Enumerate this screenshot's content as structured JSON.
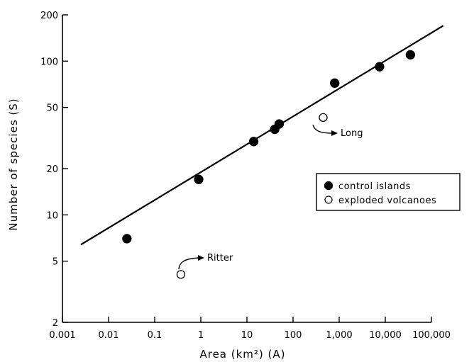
{
  "chart_data": {
    "type": "scatter",
    "x_scale": "log",
    "y_scale": "log",
    "xlim": [
      0.001,
      100000
    ],
    "ylim": [
      2,
      200
    ],
    "x_ticks": [
      {
        "value": 0.001,
        "label": "0.001"
      },
      {
        "value": 0.01,
        "label": "0.01"
      },
      {
        "value": 0.1,
        "label": "0.1"
      },
      {
        "value": 1,
        "label": "1"
      },
      {
        "value": 10,
        "label": "10"
      },
      {
        "value": 100,
        "label": "100"
      },
      {
        "value": 1000,
        "label": "1,000"
      },
      {
        "value": 10000,
        "label": "10,000"
      },
      {
        "value": 100000,
        "label": "100,000"
      }
    ],
    "y_ticks": [
      {
        "value": 2,
        "label": "2"
      },
      {
        "value": 5,
        "label": "5"
      },
      {
        "value": 10,
        "label": "10"
      },
      {
        "value": 20,
        "label": "20"
      },
      {
        "value": 50,
        "label": "50"
      },
      {
        "value": 100,
        "label": "100"
      },
      {
        "value": 200,
        "label": "200"
      }
    ],
    "xlabel": "Area (km²) (A)",
    "ylabel": "Number of species (S)",
    "grid": false,
    "legend_position": "right",
    "series": [
      {
        "name": "control islands",
        "marker": "filled-circle",
        "points": [
          {
            "x": 0.025,
            "y": 7
          },
          {
            "x": 0.9,
            "y": 17
          },
          {
            "x": 14,
            "y": 30
          },
          {
            "x": 40,
            "y": 36
          },
          {
            "x": 50,
            "y": 39
          },
          {
            "x": 800,
            "y": 72
          },
          {
            "x": 7500,
            "y": 92
          },
          {
            "x": 35000,
            "y": 110
          }
        ]
      },
      {
        "name": "exploded volcanoes",
        "marker": "open-circle",
        "points": [
          {
            "x": 0.37,
            "y": 4.1,
            "label": "Ritter"
          },
          {
            "x": 450,
            "y": 43,
            "label": "Long"
          }
        ]
      }
    ],
    "fit_line": {
      "x": [
        0.0025,
        180000
      ],
      "y": [
        6.4,
        170
      ]
    }
  }
}
